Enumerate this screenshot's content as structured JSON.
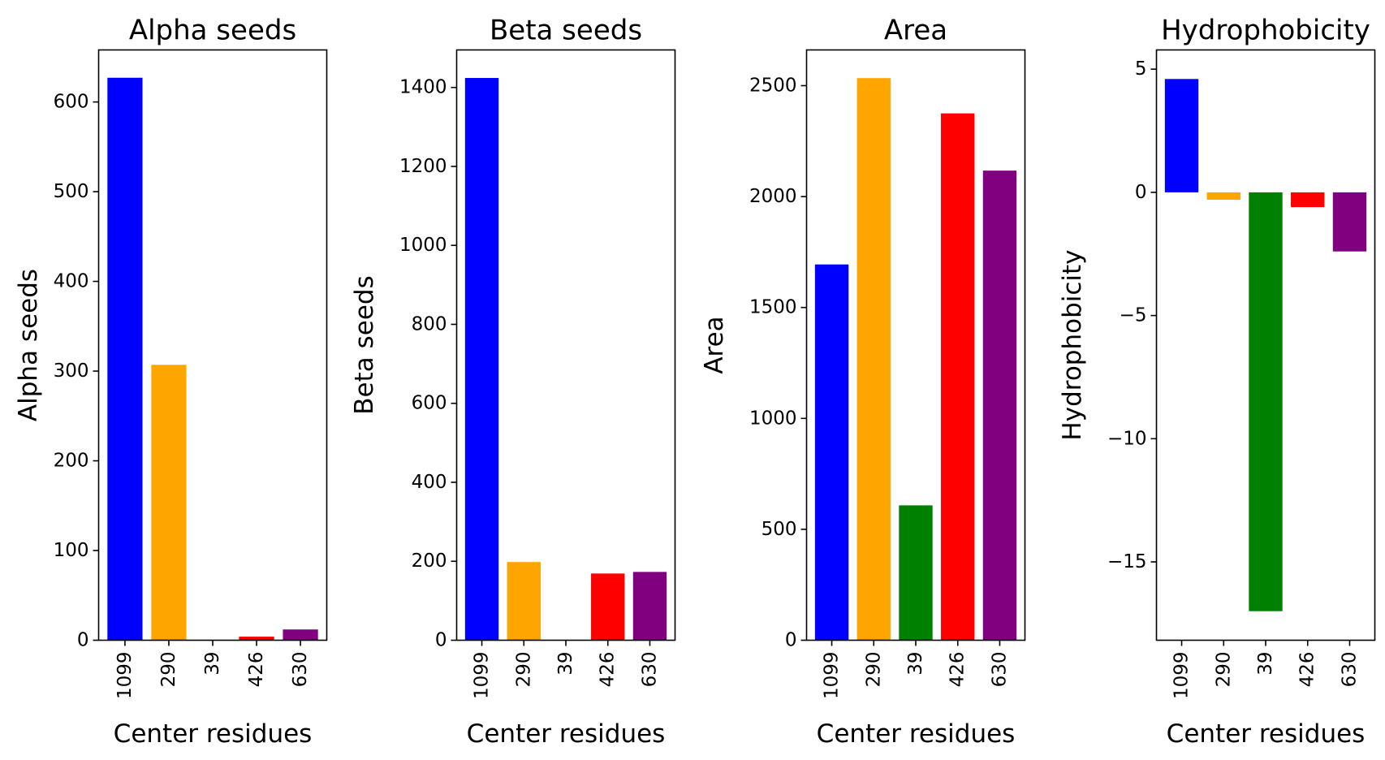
{
  "figure": {
    "background": "#ffffff"
  },
  "chart_data": [
    {
      "type": "bar",
      "title": "Alpha seeds",
      "xlabel": "Center residues",
      "ylabel": "Alpha seeds",
      "categories": [
        "1099",
        "290",
        "39",
        "426",
        "630"
      ],
      "values": [
        627,
        307,
        0,
        4,
        12
      ],
      "colors": [
        "#0000ff",
        "#ffa500",
        "#008000",
        "#ff0000",
        "#800080"
      ],
      "ylim": [
        0,
        658
      ],
      "yticks": [
        0,
        100,
        200,
        300,
        400,
        500,
        600
      ],
      "ytick_labels": [
        "0",
        "100",
        "200",
        "300",
        "400",
        "500",
        "600"
      ],
      "grid": false
    },
    {
      "type": "bar",
      "title": "Beta seeds",
      "xlabel": "Center residues",
      "ylabel": "Beta seeds",
      "categories": [
        "1099",
        "290",
        "39",
        "426",
        "630"
      ],
      "values": [
        1424,
        198,
        0,
        169,
        173
      ],
      "colors": [
        "#0000ff",
        "#ffa500",
        "#008000",
        "#ff0000",
        "#800080"
      ],
      "ylim": [
        0,
        1495
      ],
      "yticks": [
        0,
        200,
        400,
        600,
        800,
        1000,
        1200,
        1400
      ],
      "ytick_labels": [
        "0",
        "200",
        "400",
        "600",
        "800",
        "1000",
        "1200",
        "1400"
      ],
      "grid": false
    },
    {
      "type": "bar",
      "title": "Area",
      "xlabel": "Center residues",
      "ylabel": "Area",
      "categories": [
        "1099",
        "290",
        "39",
        "426",
        "630"
      ],
      "values": [
        1694,
        2534,
        608,
        2375,
        2117
      ],
      "colors": [
        "#0000ff",
        "#ffa500",
        "#008000",
        "#ff0000",
        "#800080"
      ],
      "ylim": [
        0,
        2661
      ],
      "yticks": [
        0,
        500,
        1000,
        1500,
        2000,
        2500
      ],
      "ytick_labels": [
        "0",
        "500",
        "1000",
        "1500",
        "2000",
        "2500"
      ],
      "grid": false
    },
    {
      "type": "bar",
      "title": "Hydrophobicity",
      "xlabel": "Center residues",
      "ylabel": "Hydrophobicity",
      "categories": [
        "1099",
        "290",
        "39",
        "426",
        "630"
      ],
      "values": [
        4.6,
        -0.3,
        -17.0,
        -0.6,
        -2.4
      ],
      "colors": [
        "#0000ff",
        "#ffa500",
        "#008000",
        "#ff0000",
        "#800080"
      ],
      "ylim": [
        -18.18,
        5.78
      ],
      "yticks": [
        -15,
        -10,
        -5,
        0,
        5
      ],
      "ytick_labels": [
        "−15",
        "−10",
        "−5",
        "0",
        "5"
      ],
      "grid": false
    }
  ]
}
